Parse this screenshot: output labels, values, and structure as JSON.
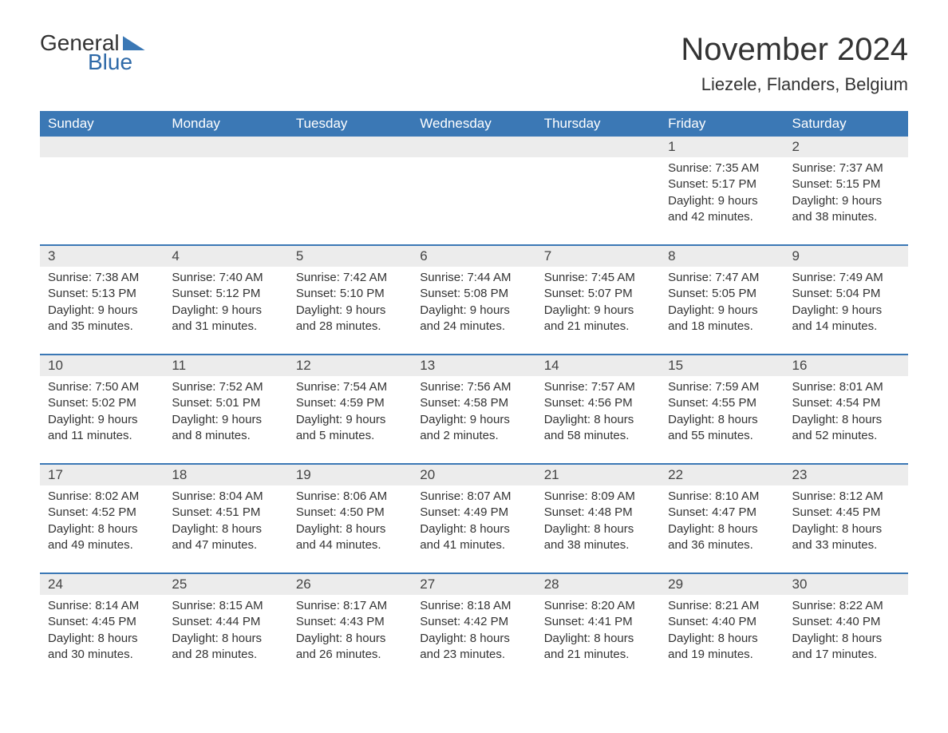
{
  "logo": {
    "text_general": "General",
    "text_blue": "Blue"
  },
  "title": "November 2024",
  "location": "Liezele, Flanders, Belgium",
  "colors": {
    "header_bg": "#3b78b5",
    "header_text": "#ffffff",
    "row_divider": "#3b78b5",
    "daynum_bg": "#ececec",
    "body_text": "#333333",
    "logo_blue": "#2f6aa8",
    "page_bg": "#ffffff"
  },
  "fonts": {
    "title_size_pt": 30,
    "location_size_pt": 16,
    "header_size_pt": 13,
    "body_size_pt": 11
  },
  "weekdays": [
    "Sunday",
    "Monday",
    "Tuesday",
    "Wednesday",
    "Thursday",
    "Friday",
    "Saturday"
  ],
  "weeks": [
    [
      null,
      null,
      null,
      null,
      null,
      {
        "n": "1",
        "sunrise": "7:35 AM",
        "sunset": "5:17 PM",
        "daylight": "9 hours and 42 minutes."
      },
      {
        "n": "2",
        "sunrise": "7:37 AM",
        "sunset": "5:15 PM",
        "daylight": "9 hours and 38 minutes."
      }
    ],
    [
      {
        "n": "3",
        "sunrise": "7:38 AM",
        "sunset": "5:13 PM",
        "daylight": "9 hours and 35 minutes."
      },
      {
        "n": "4",
        "sunrise": "7:40 AM",
        "sunset": "5:12 PM",
        "daylight": "9 hours and 31 minutes."
      },
      {
        "n": "5",
        "sunrise": "7:42 AM",
        "sunset": "5:10 PM",
        "daylight": "9 hours and 28 minutes."
      },
      {
        "n": "6",
        "sunrise": "7:44 AM",
        "sunset": "5:08 PM",
        "daylight": "9 hours and 24 minutes."
      },
      {
        "n": "7",
        "sunrise": "7:45 AM",
        "sunset": "5:07 PM",
        "daylight": "9 hours and 21 minutes."
      },
      {
        "n": "8",
        "sunrise": "7:47 AM",
        "sunset": "5:05 PM",
        "daylight": "9 hours and 18 minutes."
      },
      {
        "n": "9",
        "sunrise": "7:49 AM",
        "sunset": "5:04 PM",
        "daylight": "9 hours and 14 minutes."
      }
    ],
    [
      {
        "n": "10",
        "sunrise": "7:50 AM",
        "sunset": "5:02 PM",
        "daylight": "9 hours and 11 minutes."
      },
      {
        "n": "11",
        "sunrise": "7:52 AM",
        "sunset": "5:01 PM",
        "daylight": "9 hours and 8 minutes."
      },
      {
        "n": "12",
        "sunrise": "7:54 AM",
        "sunset": "4:59 PM",
        "daylight": "9 hours and 5 minutes."
      },
      {
        "n": "13",
        "sunrise": "7:56 AM",
        "sunset": "4:58 PM",
        "daylight": "9 hours and 2 minutes."
      },
      {
        "n": "14",
        "sunrise": "7:57 AM",
        "sunset": "4:56 PM",
        "daylight": "8 hours and 58 minutes."
      },
      {
        "n": "15",
        "sunrise": "7:59 AM",
        "sunset": "4:55 PM",
        "daylight": "8 hours and 55 minutes."
      },
      {
        "n": "16",
        "sunrise": "8:01 AM",
        "sunset": "4:54 PM",
        "daylight": "8 hours and 52 minutes."
      }
    ],
    [
      {
        "n": "17",
        "sunrise": "8:02 AM",
        "sunset": "4:52 PM",
        "daylight": "8 hours and 49 minutes."
      },
      {
        "n": "18",
        "sunrise": "8:04 AM",
        "sunset": "4:51 PM",
        "daylight": "8 hours and 47 minutes."
      },
      {
        "n": "19",
        "sunrise": "8:06 AM",
        "sunset": "4:50 PM",
        "daylight": "8 hours and 44 minutes."
      },
      {
        "n": "20",
        "sunrise": "8:07 AM",
        "sunset": "4:49 PM",
        "daylight": "8 hours and 41 minutes."
      },
      {
        "n": "21",
        "sunrise": "8:09 AM",
        "sunset": "4:48 PM",
        "daylight": "8 hours and 38 minutes."
      },
      {
        "n": "22",
        "sunrise": "8:10 AM",
        "sunset": "4:47 PM",
        "daylight": "8 hours and 36 minutes."
      },
      {
        "n": "23",
        "sunrise": "8:12 AM",
        "sunset": "4:45 PM",
        "daylight": "8 hours and 33 minutes."
      }
    ],
    [
      {
        "n": "24",
        "sunrise": "8:14 AM",
        "sunset": "4:45 PM",
        "daylight": "8 hours and 30 minutes."
      },
      {
        "n": "25",
        "sunrise": "8:15 AM",
        "sunset": "4:44 PM",
        "daylight": "8 hours and 28 minutes."
      },
      {
        "n": "26",
        "sunrise": "8:17 AM",
        "sunset": "4:43 PM",
        "daylight": "8 hours and 26 minutes."
      },
      {
        "n": "27",
        "sunrise": "8:18 AM",
        "sunset": "4:42 PM",
        "daylight": "8 hours and 23 minutes."
      },
      {
        "n": "28",
        "sunrise": "8:20 AM",
        "sunset": "4:41 PM",
        "daylight": "8 hours and 21 minutes."
      },
      {
        "n": "29",
        "sunrise": "8:21 AM",
        "sunset": "4:40 PM",
        "daylight": "8 hours and 19 minutes."
      },
      {
        "n": "30",
        "sunrise": "8:22 AM",
        "sunset": "4:40 PM",
        "daylight": "8 hours and 17 minutes."
      }
    ]
  ],
  "labels": {
    "sunrise": "Sunrise: ",
    "sunset": "Sunset: ",
    "daylight": "Daylight: "
  }
}
